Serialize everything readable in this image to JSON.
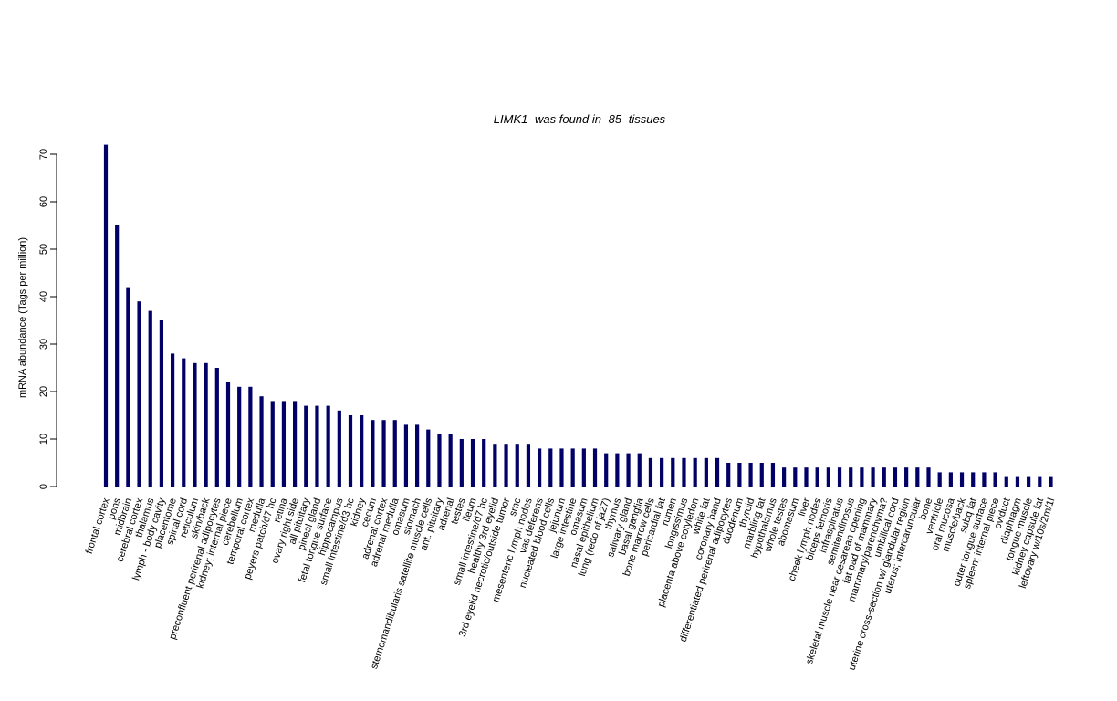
{
  "chart_data": {
    "type": "bar",
    "title_parts": {
      "gene": "LIMK1",
      "mid": "was found in",
      "count": "85",
      "end": "tissues"
    },
    "ylabel": "mRNA abundance (Tags per million)",
    "xlabel": "",
    "ylim": [
      0,
      72
    ],
    "yticks": [
      0,
      10,
      20,
      30,
      40,
      50,
      60,
      70
    ],
    "bar_color": "#000066",
    "categories": [
      "frontal cortex",
      "pons",
      "midbrain",
      "cerebral cortex",
      "thalamus",
      "lymph - body cavity",
      "placentome",
      "spinal cord",
      "reticulum",
      "skin/back",
      "preconfluent perirenal adipocytes",
      "kidney; internal piece",
      "cerebellum",
      "temporal cortex",
      "medulla",
      "peyers patch/d7 hc",
      "retina",
      "ovary right side",
      "all pituitary",
      "pineal gland",
      "fetal tongue surface",
      "hippocampus",
      "small intestine/d3 hc",
      "kidney",
      "cecum",
      "adrenal cortex",
      "adrenal medulla",
      "omasum",
      "stomach",
      "sternomandibularis satellite muscle cells",
      "ant. pituitary",
      "adrenal",
      "testes",
      "ileum",
      "small intestine/d7 hc",
      "healthy 3rd eyelid",
      "3rd eyelid necrotic/outside tumor",
      "smc",
      "mesenteric lymph nodes",
      "vas deferens",
      "nucleated blood cells",
      "jejunum",
      "large intestine",
      "omasum",
      "nasal epithelium",
      "lung (redo of ja27)",
      "thymus",
      "salivary gland",
      "basal ganglia",
      "bone marrow cells",
      "pericardial fat",
      "rumen",
      "longissimus",
      "placenta above cotyledon",
      "white fat",
      "coronary band",
      "differentiated perirenal adipocytes",
      "duodenum",
      "thyroid",
      "marbling fat",
      "hypothalamus",
      "whole testes",
      "abomasum",
      "liver",
      "cheek lymph nodes",
      "biceps femoris",
      "infraspinatus",
      "semitendinosus",
      "skeletal muscle near cesarean opening",
      "fat pad of mammary",
      "mammary/parenchyma?",
      "umbilical cord",
      "uterine cross-section w/ glandular region",
      "uterus; intercaruncular",
      "bone",
      "ventricle",
      "oral mucosa",
      "muscle/back",
      "subq fat",
      "outer tongue surface",
      "spleen; internal piece",
      "oviduct",
      "diaphragm",
      "tongue muscle",
      "kidney capsule fat",
      "leftovary w/10s/2m/1l"
    ],
    "values": [
      72,
      55,
      42,
      39,
      37,
      35,
      28,
      27,
      26,
      26,
      25,
      22,
      21,
      21,
      19,
      18,
      18,
      18,
      17,
      17,
      17,
      16,
      15,
      15,
      14,
      14,
      14,
      13,
      13,
      12,
      11,
      11,
      10,
      10,
      10,
      9,
      9,
      9,
      9,
      8,
      8,
      8,
      8,
      8,
      8,
      7,
      7,
      7,
      7,
      6,
      6,
      6,
      6,
      6,
      6,
      6,
      5,
      5,
      5,
      5,
      5,
      4,
      4,
      4,
      4,
      4,
      4,
      4,
      4,
      4,
      4,
      4,
      4,
      4,
      4,
      3,
      3,
      3,
      3,
      3,
      3,
      2,
      2,
      2,
      2,
      2
    ]
  }
}
